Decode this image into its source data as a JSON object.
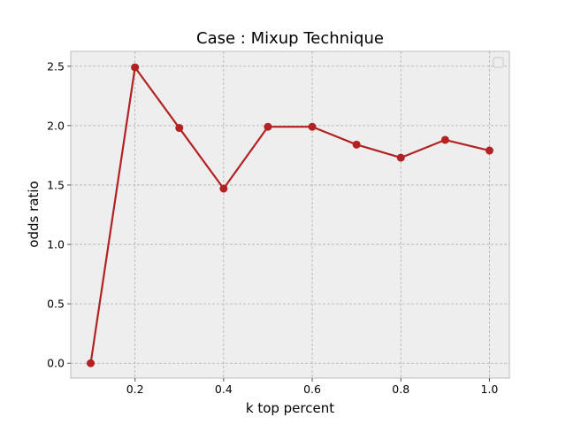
{
  "chart_data": {
    "type": "line",
    "title": "Case : Mixup Technique",
    "xlabel": "k top percent",
    "ylabel": "odds ratio",
    "xlim": [
      0.055,
      1.045
    ],
    "ylim": [
      -0.125,
      2.625
    ],
    "xticks": [
      0.2,
      0.4,
      0.6,
      0.8,
      1.0
    ],
    "xtick_labels": [
      "0.2",
      "0.4",
      "0.6",
      "0.8",
      "1.0"
    ],
    "yticks": [
      0.0,
      0.5,
      1.0,
      1.5,
      2.0,
      2.5
    ],
    "ytick_labels": [
      "0.0",
      "0.5",
      "1.0",
      "1.5",
      "2.0",
      "2.5"
    ],
    "grid": true,
    "legend": "upper right (empty)",
    "series": [
      {
        "color": "#b22222",
        "marker": "circle",
        "x": [
          0.1,
          0.2,
          0.3,
          0.4,
          0.5,
          0.6,
          0.7,
          0.8,
          0.9,
          1.0
        ],
        "y": [
          0.0,
          2.49,
          1.98,
          1.47,
          1.99,
          1.99,
          1.84,
          1.73,
          1.88,
          1.79
        ]
      }
    ]
  }
}
